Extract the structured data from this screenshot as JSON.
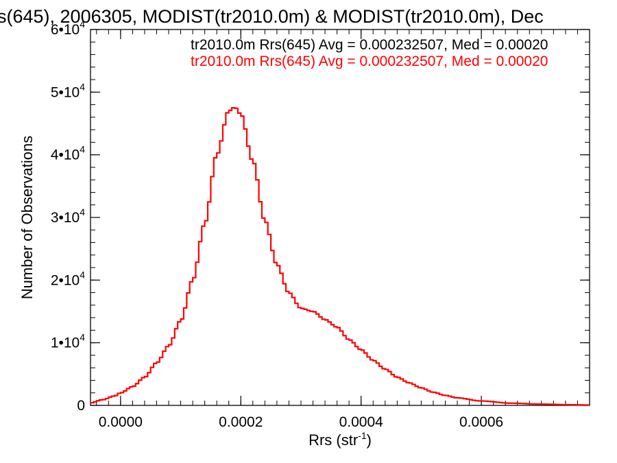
{
  "chart_data": {
    "type": "step-histogram",
    "title": "s(645), 2006305, MODIST(tr2010.0m) & MODIST(tr2010.0m), Dec",
    "xlabel": "Rrs (str",
    "xlabel_sup": "-1",
    "xlabel_close": ")",
    "ylabel": "Number of Observations",
    "xlim": [
      -5e-05,
      0.00078
    ],
    "ylim": [
      0,
      60000
    ],
    "x_ticks": [
      {
        "value": 0.0,
        "label": "0.0000"
      },
      {
        "value": 0.0002,
        "label": "0.0002"
      },
      {
        "value": 0.0004,
        "label": "0.0004"
      },
      {
        "value": 0.0006,
        "label": "0.0006"
      }
    ],
    "y_ticks": [
      {
        "value": 0,
        "mant": "0",
        "exp": ""
      },
      {
        "value": 10000,
        "mant": "1•10",
        "exp": "4"
      },
      {
        "value": 20000,
        "mant": "2•10",
        "exp": "4"
      },
      {
        "value": 30000,
        "mant": "3•10",
        "exp": "4"
      },
      {
        "value": 40000,
        "mant": "4•10",
        "exp": "4"
      },
      {
        "value": 50000,
        "mant": "5•10",
        "exp": "4"
      },
      {
        "value": 60000,
        "mant": "6•10",
        "exp": "4"
      }
    ],
    "legend": [
      {
        "text": "tr2010.0m Rrs(645) Avg = 0.000232507, Med = 0.00020",
        "color": "#000000"
      },
      {
        "text": "tr2010.0m Rrs(645) Avg = 0.000232507, Med = 0.00020",
        "color": "#ff0000"
      }
    ],
    "series": [
      {
        "color": "#ff0000",
        "bin_width": 5e-06,
        "points": [
          [
            -5e-05,
            400
          ],
          [
            -3e-05,
            900
          ],
          [
            -1e-05,
            1500
          ],
          [
            0.0,
            2000
          ],
          [
            2e-05,
            3000
          ],
          [
            4e-05,
            4500
          ],
          [
            6e-05,
            6800
          ],
          [
            8e-05,
            9500
          ],
          [
            0.0001,
            13500
          ],
          [
            0.00012,
            20000
          ],
          [
            0.00014,
            29000
          ],
          [
            0.00016,
            40000
          ],
          [
            0.00018,
            47000
          ],
          [
            0.00019,
            47600
          ],
          [
            0.0002,
            46500
          ],
          [
            0.00022,
            39000
          ],
          [
            0.00024,
            29500
          ],
          [
            0.00026,
            22500
          ],
          [
            0.00028,
            18000
          ],
          [
            0.0003,
            15500
          ],
          [
            0.00032,
            15000
          ],
          [
            0.00034,
            13700
          ],
          [
            0.00036,
            12500
          ],
          [
            0.00038,
            10500
          ],
          [
            0.0004,
            8900
          ],
          [
            0.00042,
            7200
          ],
          [
            0.00044,
            5800
          ],
          [
            0.00046,
            4500
          ],
          [
            0.00048,
            3600
          ],
          [
            0.0005,
            2800
          ],
          [
            0.00052,
            2100
          ],
          [
            0.00054,
            1600
          ],
          [
            0.00056,
            1200
          ],
          [
            0.0006,
            700
          ],
          [
            0.00065,
            350
          ],
          [
            0.0007,
            200
          ],
          [
            0.00075,
            100
          ],
          [
            0.00078,
            50
          ]
        ]
      }
    ]
  }
}
